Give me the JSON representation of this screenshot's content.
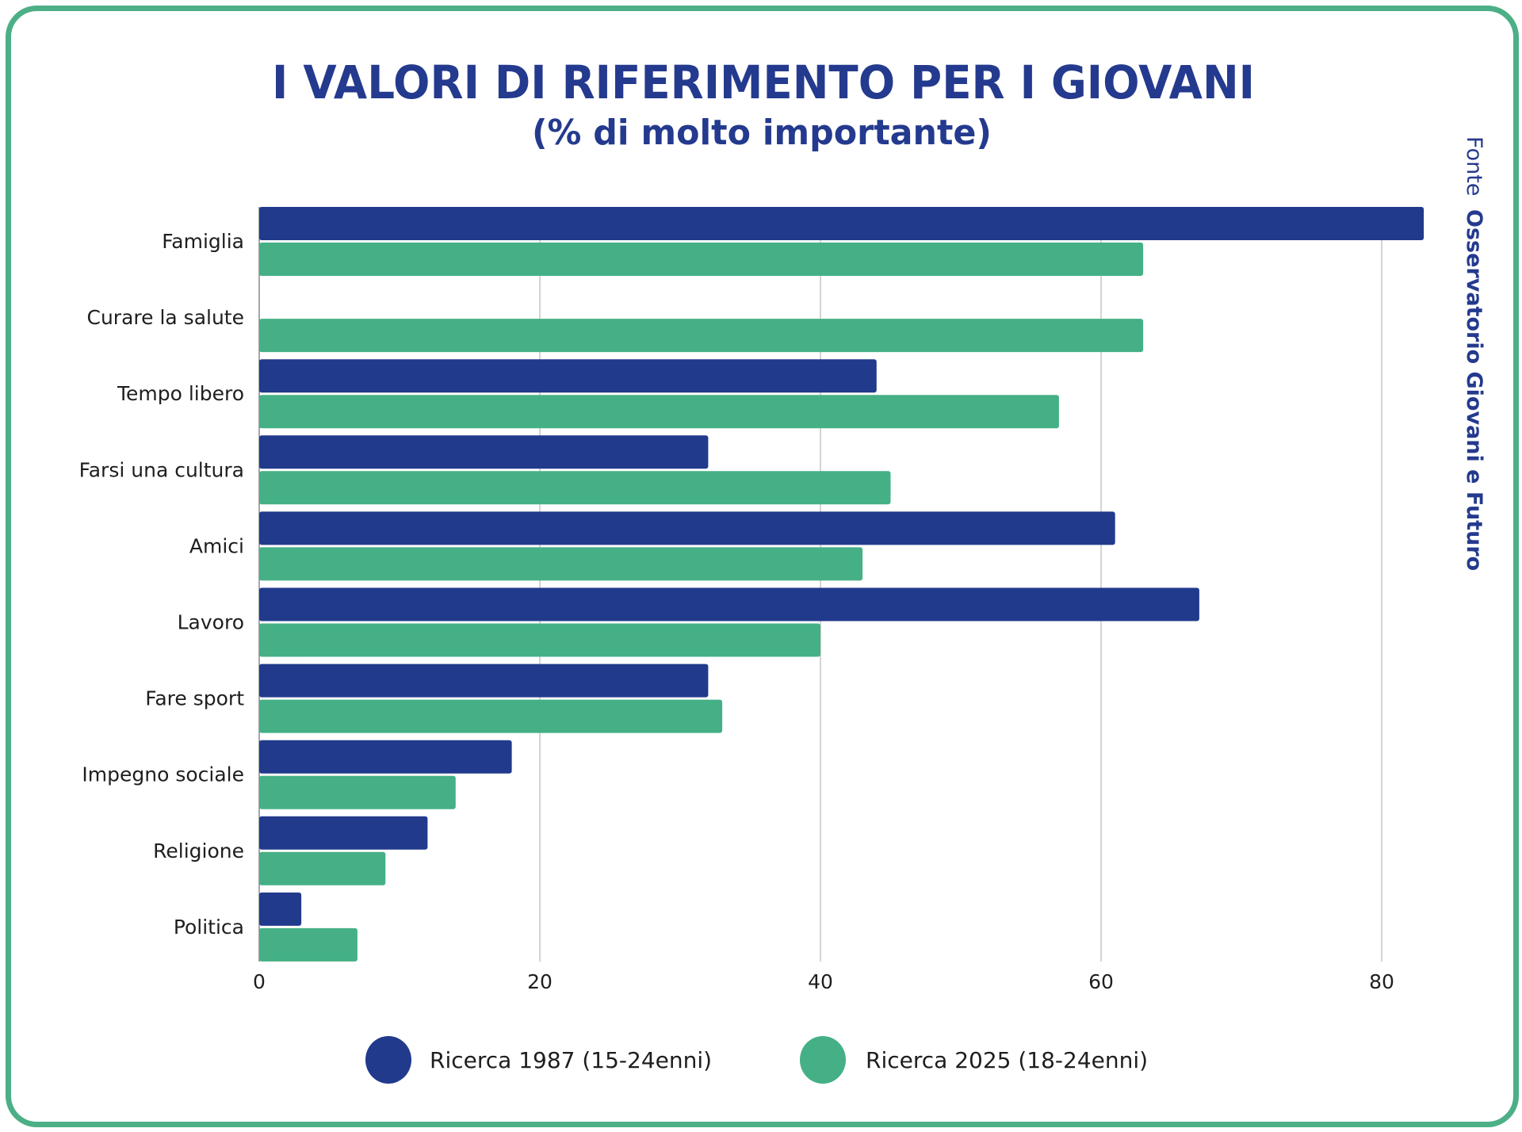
{
  "chart_data": {
    "type": "bar",
    "orientation": "horizontal",
    "title": "I VALORI DI RIFERIMENTO PER I GIOVANI",
    "subtitle": "(% di molto importante)",
    "xlabel": "",
    "ylabel": "",
    "xlim": [
      0,
      83
    ],
    "xticks": [
      0,
      20,
      40,
      60,
      80
    ],
    "xtick_labels": [
      "0",
      "20",
      "40",
      "60",
      "80"
    ],
    "grid": true,
    "categories": [
      "Famiglia",
      "Curare la salute",
      "Tempo libero",
      "Farsi una cultura",
      "Amici",
      "Lavoro",
      "Fare sport",
      "Impegno sociale",
      "Religione",
      "Politica"
    ],
    "series": [
      {
        "name": "Ricerca 1987 (15-24enni)",
        "color": "#213a8c",
        "values": [
          83,
          null,
          44,
          32,
          61,
          67,
          32,
          18,
          12,
          3
        ]
      },
      {
        "name": "Ricerca 2025 (18-24enni)",
        "color": "#45b085",
        "values": [
          63,
          63,
          57,
          45,
          43,
          40,
          33,
          14,
          9,
          7
        ]
      }
    ],
    "legend_position": "bottom",
    "source_label": "Fonte",
    "source_name": "Osservatorio Giovani e Futuro"
  },
  "colors": {
    "frame": "#4caf86",
    "title": "#243a8e",
    "grid": "#c9c9c9",
    "text": "#1e1e1e"
  }
}
